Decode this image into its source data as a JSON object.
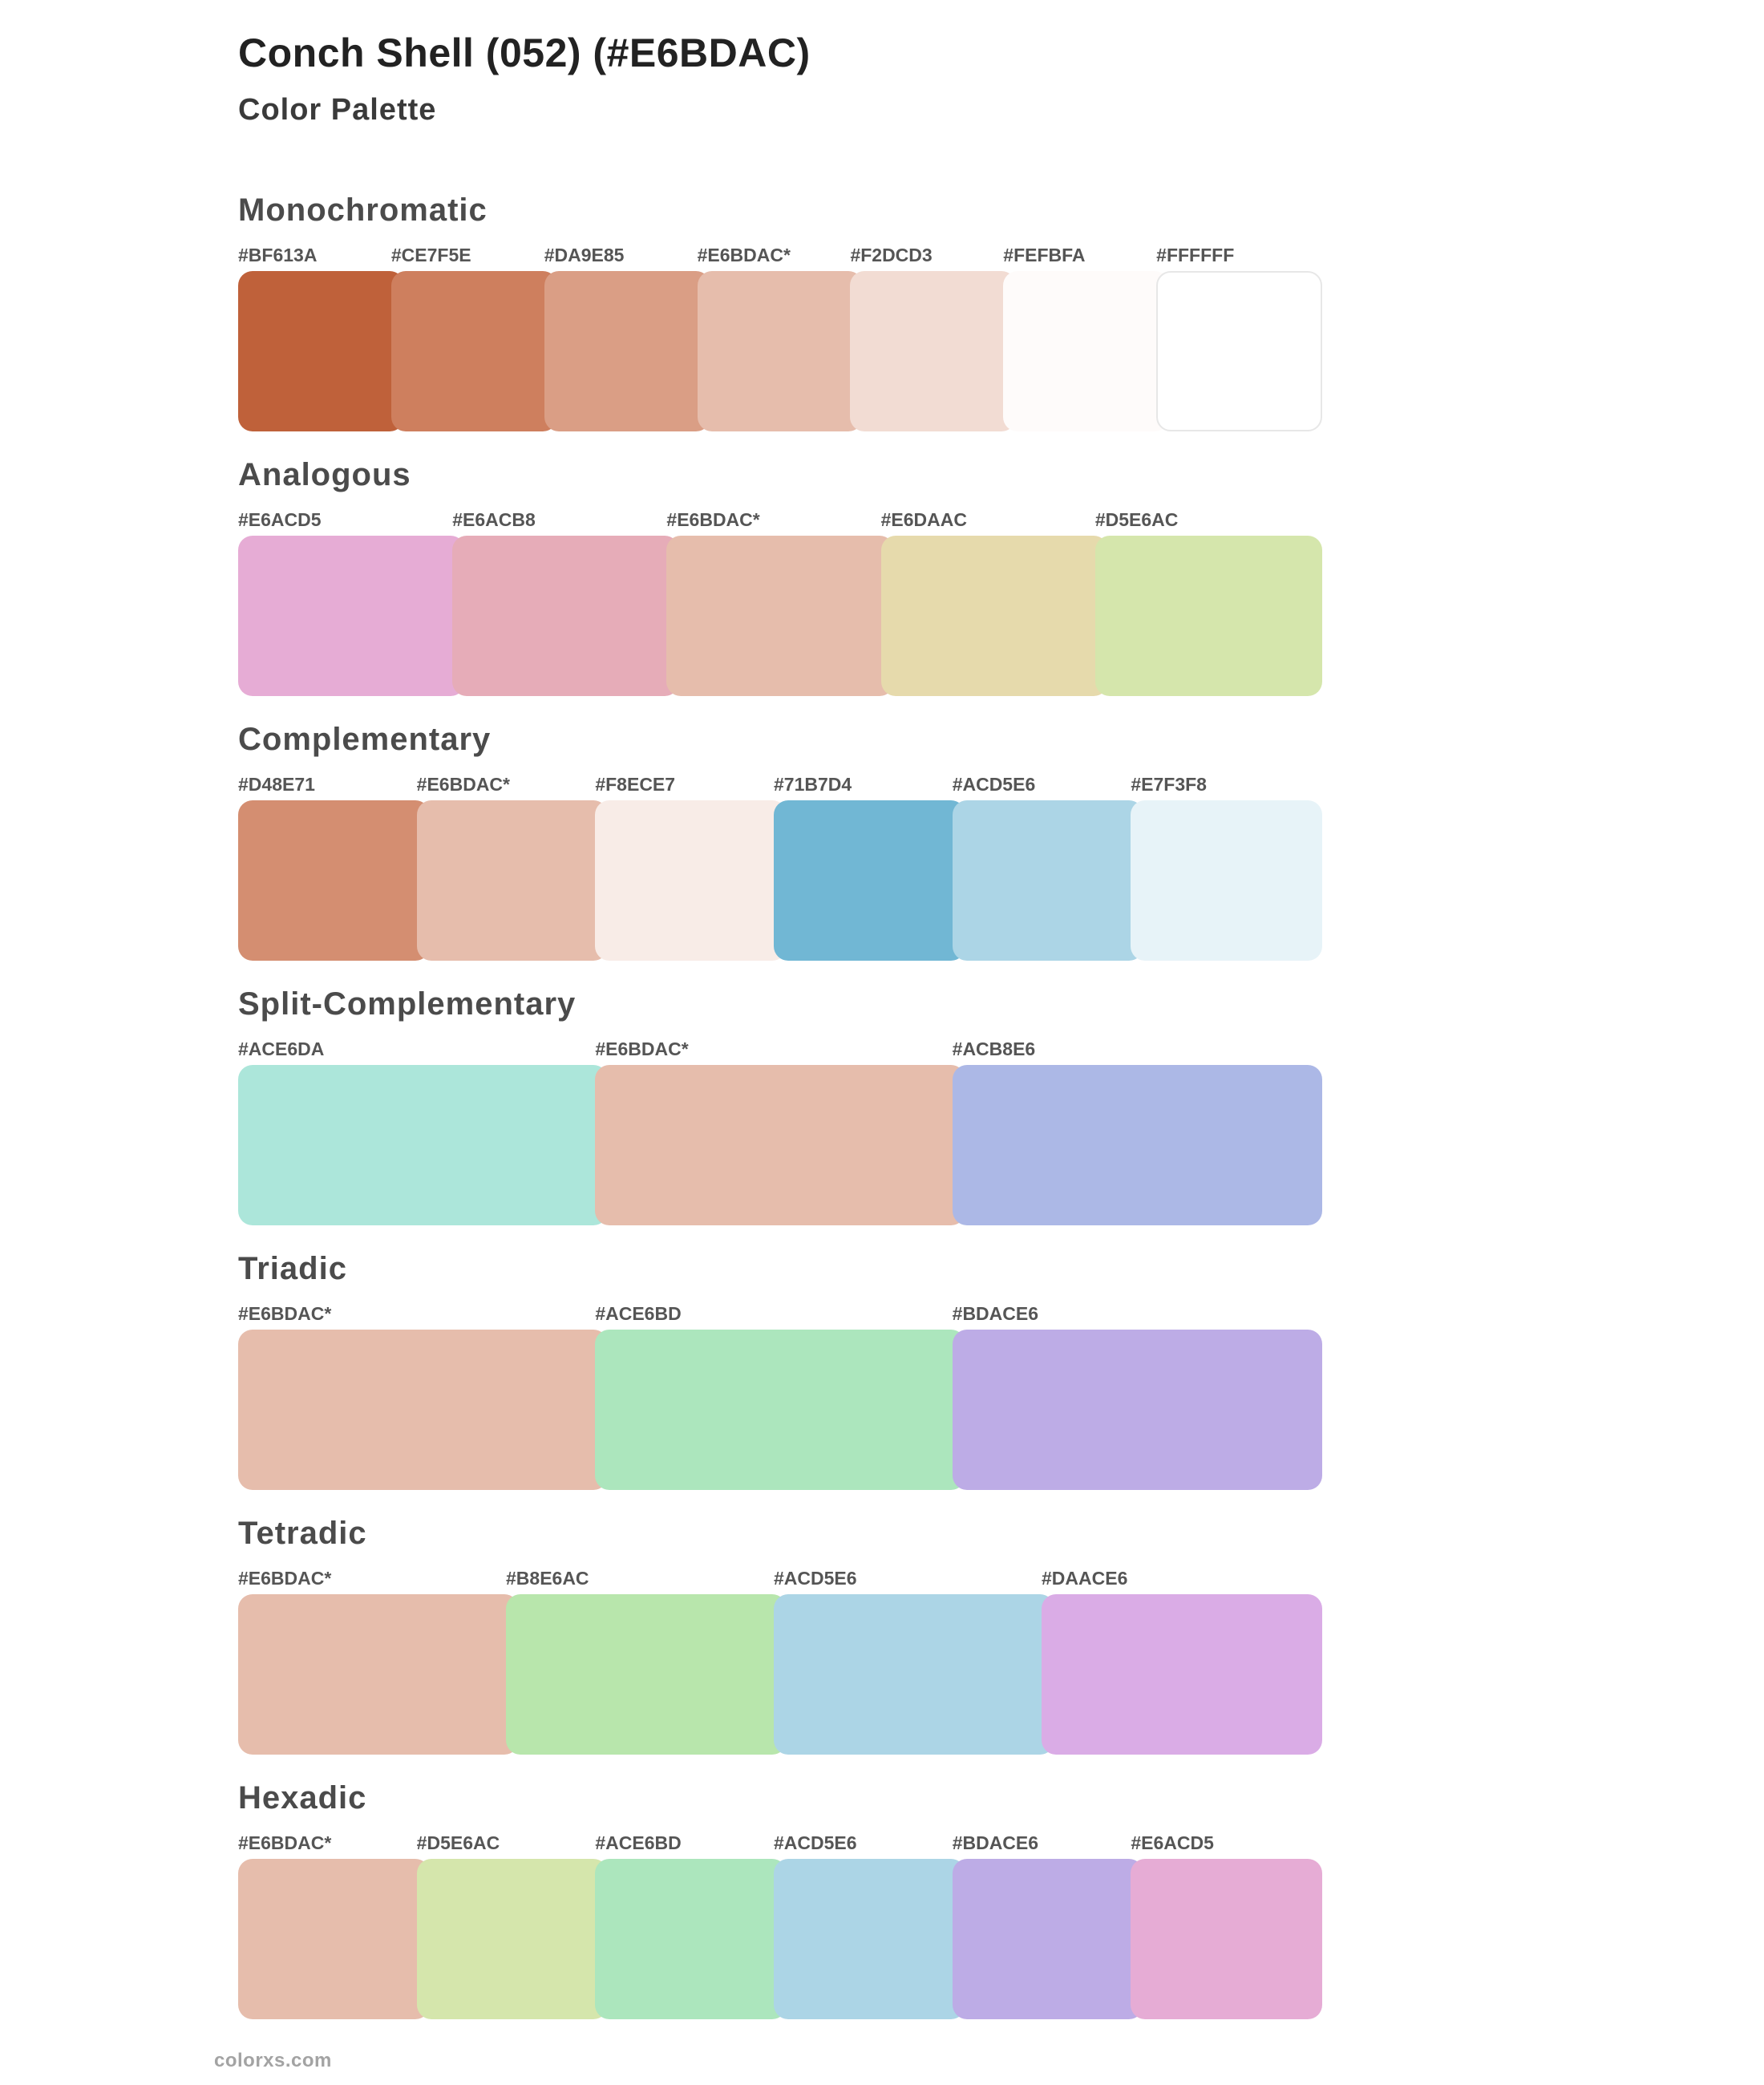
{
  "page": {
    "title": "Conch Shell (052) (#E6BDAC)",
    "subtitle": "Color Palette",
    "footer": "colorxs.com",
    "base_color": "#E6BDAC"
  },
  "sections": [
    {
      "title": "Monochromatic",
      "swatches": [
        {
          "label": "#BF613A",
          "hex": "#BF613A"
        },
        {
          "label": "#CE7F5E",
          "hex": "#CE7F5E"
        },
        {
          "label": "#DA9E85",
          "hex": "#DA9E85"
        },
        {
          "label": "#E6BDAC*",
          "hex": "#E6BDAC"
        },
        {
          "label": "#F2DCD3",
          "hex": "#F2DCD3"
        },
        {
          "label": "#FEFBFA",
          "hex": "#FEFBFA"
        },
        {
          "label": "#FFFFFF",
          "hex": "#FFFFFF"
        }
      ]
    },
    {
      "title": "Analogous",
      "swatches": [
        {
          "label": "#E6ACD5",
          "hex": "#E6ACD5"
        },
        {
          "label": "#E6ACB8",
          "hex": "#E6ACB8"
        },
        {
          "label": "#E6BDAC*",
          "hex": "#E6BDAC"
        },
        {
          "label": "#E6DAAC",
          "hex": "#E6DAAC"
        },
        {
          "label": "#D5E6AC",
          "hex": "#D5E6AC"
        }
      ]
    },
    {
      "title": "Complementary",
      "swatches": [
        {
          "label": "#D48E71",
          "hex": "#D48E71"
        },
        {
          "label": "#E6BDAC*",
          "hex": "#E6BDAC"
        },
        {
          "label": "#F8ECE7",
          "hex": "#F8ECE7"
        },
        {
          "label": "#71B7D4",
          "hex": "#71B7D4"
        },
        {
          "label": "#ACD5E6",
          "hex": "#ACD5E6"
        },
        {
          "label": "#E7F3F8",
          "hex": "#E7F3F8"
        }
      ]
    },
    {
      "title": "Split-Complementary",
      "swatches": [
        {
          "label": "#ACE6DA",
          "hex": "#ACE6DA"
        },
        {
          "label": "#E6BDAC*",
          "hex": "#E6BDAC"
        },
        {
          "label": "#ACB8E6",
          "hex": "#ACB8E6"
        }
      ]
    },
    {
      "title": "Triadic",
      "swatches": [
        {
          "label": "#E6BDAC*",
          "hex": "#E6BDAC"
        },
        {
          "label": "#ACE6BD",
          "hex": "#ACE6BD"
        },
        {
          "label": "#BDACE6",
          "hex": "#BDACE6"
        }
      ]
    },
    {
      "title": "Tetradic",
      "swatches": [
        {
          "label": "#E6BDAC*",
          "hex": "#E6BDAC"
        },
        {
          "label": "#B8E6AC",
          "hex": "#B8E6AC"
        },
        {
          "label": "#ACD5E6",
          "hex": "#ACD5E6"
        },
        {
          "label": "#DAACE6",
          "hex": "#DAACE6"
        }
      ]
    },
    {
      "title": "Hexadic",
      "swatches": [
        {
          "label": "#E6BDAC*",
          "hex": "#E6BDAC"
        },
        {
          "label": "#D5E6AC",
          "hex": "#D5E6AC"
        },
        {
          "label": "#ACE6BD",
          "hex": "#ACE6BD"
        },
        {
          "label": "#ACD5E6",
          "hex": "#ACD5E6"
        },
        {
          "label": "#BDACE6",
          "hex": "#BDACE6"
        },
        {
          "label": "#E6ACD5",
          "hex": "#E6ACD5"
        }
      ]
    }
  ]
}
